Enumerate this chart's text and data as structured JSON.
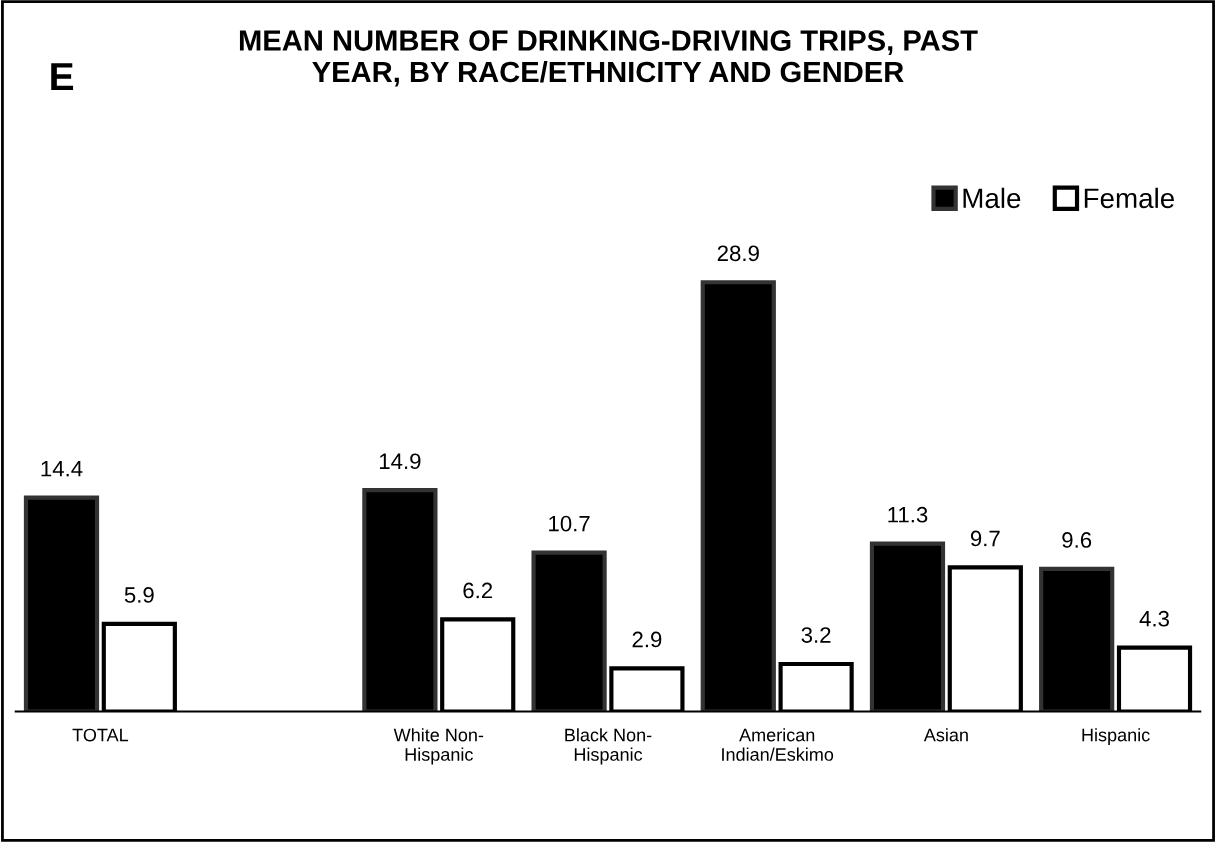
{
  "chart_data": {
    "type": "bar",
    "title": "MEAN NUMBER OF DRINKING-DRIVING TRIPS, PAST\nYEAR, BY RACE/ETHNICITY AND GENDER",
    "annotations": [
      "E"
    ],
    "categories": [
      "TOTAL",
      null,
      "White Non-\nHispanic",
      "Black Non-\nHispanic",
      "American\nIndian/Eskimo",
      "Asian",
      "Hispanic"
    ],
    "series": [
      {
        "name": "Male",
        "color": "#000000",
        "values": [
          14.4,
          null,
          14.9,
          10.7,
          28.9,
          11.3,
          9.6
        ]
      },
      {
        "name": "Female",
        "color": "#ffffff",
        "values": [
          5.9,
          null,
          6.2,
          2.9,
          3.2,
          9.7,
          4.3
        ]
      }
    ],
    "data_labels": true,
    "legend": "top right",
    "grid": false
  }
}
